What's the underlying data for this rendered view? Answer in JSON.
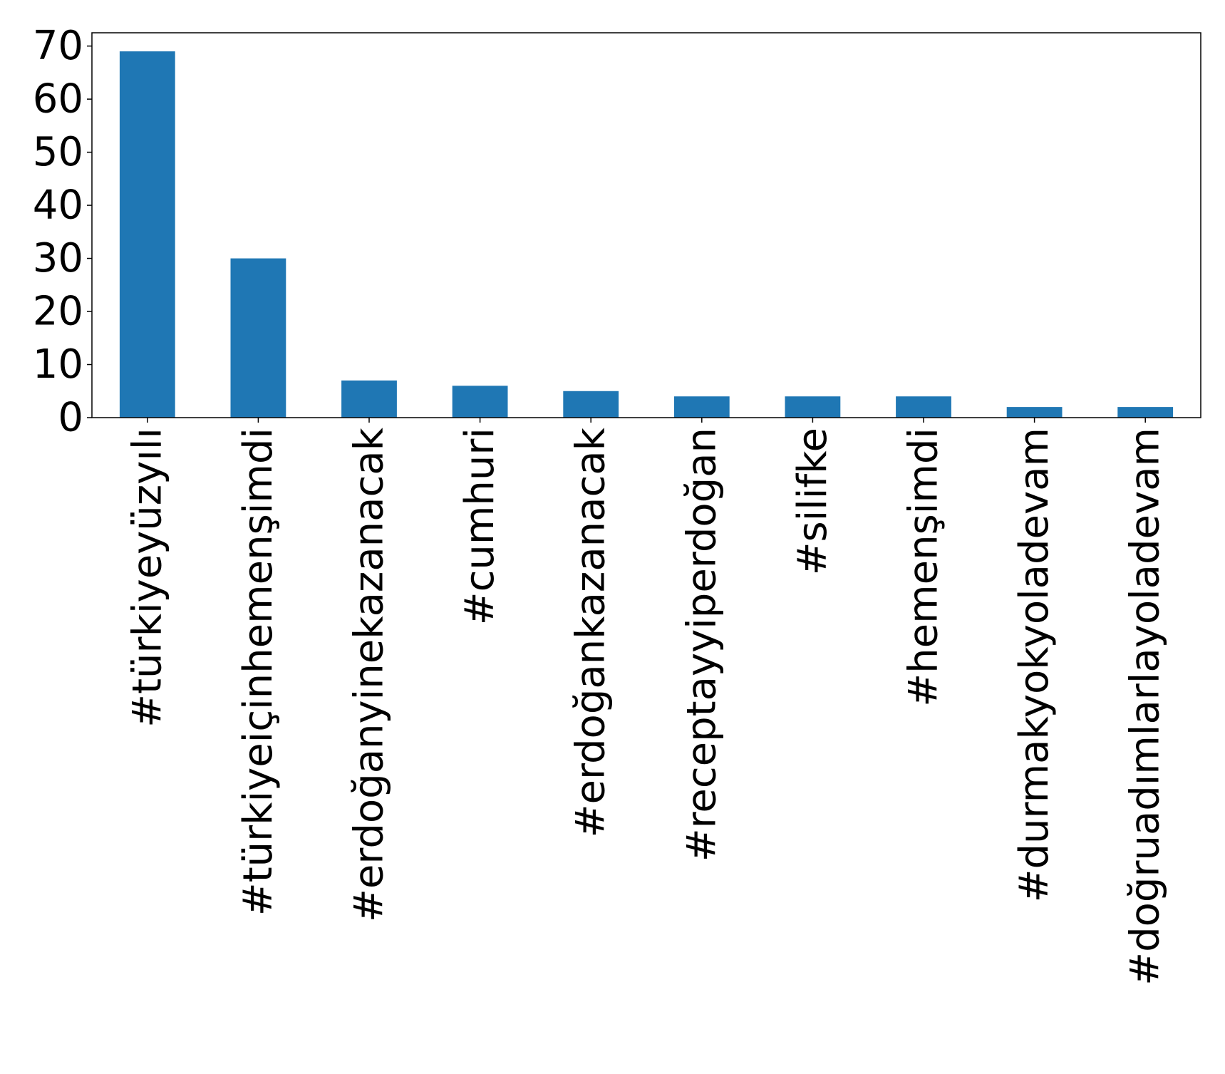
{
  "chart_data": {
    "type": "bar",
    "title": "",
    "xlabel": "",
    "ylabel": "",
    "categories": [
      "#türkiyeyüzyılı",
      "#türkiyeiçinhemenşimdi",
      "#erdoğanyinekazanacak",
      "#cumhuri",
      "#erdoğankazanacak",
      "#receptayyiperdoğan",
      "#silifke",
      "#hemenşimdi",
      "#durmakyokyoladevam",
      "#doğruadımlarlayoladevam"
    ],
    "values": [
      69,
      30,
      7,
      6,
      5,
      4,
      4,
      4,
      2,
      2
    ],
    "ylim": [
      0,
      72.5
    ],
    "yticks": [
      "0",
      "10",
      "20",
      "30",
      "40",
      "50",
      "60",
      "70"
    ],
    "grid": false,
    "legend": "none",
    "bar_color": "#1f77b4"
  }
}
